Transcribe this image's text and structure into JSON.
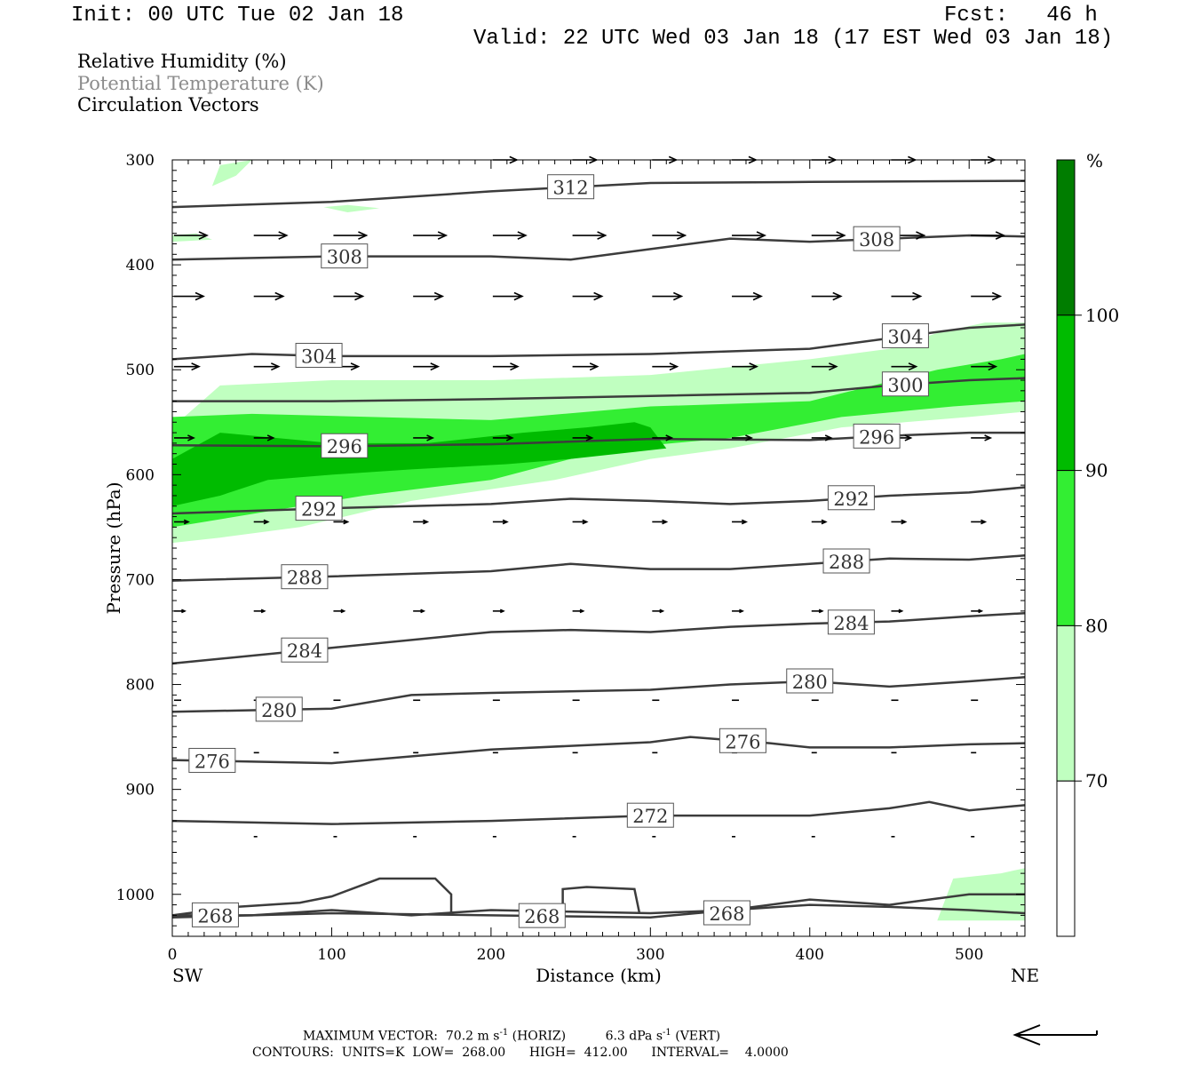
{
  "header": {
    "init": "Init: 00 UTC Tue 02 Jan 18",
    "fcst": "Fcst:   46 h",
    "valid": "Valid: 22 UTC Wed 03 Jan 18 (17 EST Wed 03 Jan 18)"
  },
  "legend": {
    "rh": "Relative Humidity (%)",
    "theta": "Potential Temperature (K)",
    "vectors": "Circulation Vectors",
    "rh_color": "#000000",
    "theta_color": "#8c8c8c"
  },
  "footer": {
    "max_vector_label": "MAXIMUM VECTOR:",
    "horiz_value": "70.2 m s",
    "horiz_unit": "(HORIZ)",
    "vert_value": "6.3 dPa s",
    "vert_unit": "(VERT)",
    "exp": "-1",
    "contours": "CONTOURS:  UNITS=K  LOW=  268.00      HIGH=  412.00      INTERVAL=    4.0000"
  },
  "chart_data": {
    "type": "contour",
    "xlabel": "Distance (km)",
    "ylabel": "Pressure (hPa)",
    "x_end_left": "SW",
    "x_end_right": "NE",
    "xlim": [
      0,
      535
    ],
    "ylim": [
      1040,
      300
    ],
    "xticks": [
      0,
      100,
      200,
      300,
      400,
      500
    ],
    "yticks": [
      300,
      400,
      500,
      600,
      700,
      800,
      900,
      1000
    ],
    "colorbar": {
      "unit": "%",
      "levels": [
        70,
        80,
        90,
        100
      ],
      "colors": [
        "#ffffff",
        "#c0ffc0",
        "#33ee33",
        "#00bb00",
        "#007d00"
      ]
    },
    "rh_shading": [
      {
        "rh": 70,
        "color": "#c0ffc0",
        "points": [
          [
            0,
            565
          ],
          [
            0,
            555
          ],
          [
            30,
            515
          ],
          [
            100,
            510
          ],
          [
            200,
            510
          ],
          [
            300,
            505
          ],
          [
            400,
            490
          ],
          [
            450,
            480
          ],
          [
            480,
            465
          ],
          [
            510,
            455
          ],
          [
            535,
            455
          ],
          [
            535,
            540
          ],
          [
            500,
            545
          ],
          [
            420,
            555
          ],
          [
            350,
            575
          ],
          [
            300,
            585
          ],
          [
            240,
            605
          ],
          [
            150,
            625
          ],
          [
            80,
            650
          ],
          [
            30,
            660
          ],
          [
            0,
            665
          ]
        ]
      },
      {
        "rh": 70,
        "color": "#c0ffc0",
        "points": [
          [
            480,
            1025
          ],
          [
            490,
            985
          ],
          [
            520,
            980
          ],
          [
            535,
            975
          ],
          [
            535,
            1025
          ]
        ]
      },
      {
        "rh": 70,
        "color": "#c0ffc0",
        "points": [
          [
            25,
            325
          ],
          [
            30,
            305
          ],
          [
            50,
            300
          ],
          [
            40,
            315
          ]
        ]
      },
      {
        "rh": 70,
        "color": "#c0ffc0",
        "points": [
          [
            95,
            345
          ],
          [
            110,
            343
          ],
          [
            130,
            346
          ],
          [
            110,
            350
          ]
        ]
      },
      {
        "rh": 70,
        "color": "#c0ffc0",
        "points": [
          [
            0,
            372
          ],
          [
            15,
            370
          ],
          [
            25,
            376
          ],
          [
            0,
            378
          ]
        ]
      },
      {
        "rh": 80,
        "color": "#33ee33",
        "points": [
          [
            0,
            650
          ],
          [
            0,
            545
          ],
          [
            50,
            542
          ],
          [
            200,
            548
          ],
          [
            300,
            535
          ],
          [
            400,
            530
          ],
          [
            480,
            500
          ],
          [
            520,
            490
          ],
          [
            535,
            485
          ],
          [
            535,
            530
          ],
          [
            490,
            535
          ],
          [
            420,
            545
          ],
          [
            350,
            565
          ],
          [
            300,
            572
          ],
          [
            250,
            585
          ],
          [
            200,
            605
          ],
          [
            120,
            620
          ],
          [
            60,
            635
          ],
          [
            20,
            645
          ]
        ]
      },
      {
        "rh": 90,
        "color": "#00bb00",
        "points": [
          [
            0,
            630
          ],
          [
            0,
            585
          ],
          [
            30,
            560
          ],
          [
            100,
            570
          ],
          [
            160,
            570
          ],
          [
            220,
            560
          ],
          [
            260,
            555
          ],
          [
            290,
            550
          ],
          [
            300,
            555
          ],
          [
            310,
            575
          ],
          [
            280,
            580
          ],
          [
            250,
            585
          ],
          [
            210,
            590
          ],
          [
            150,
            595
          ],
          [
            100,
            600
          ],
          [
            60,
            605
          ],
          [
            30,
            620
          ]
        ]
      }
    ],
    "theta_contours": [
      {
        "value": 312,
        "label_x": 250,
        "points": [
          [
            0,
            345
          ],
          [
            100,
            340
          ],
          [
            200,
            330
          ],
          [
            300,
            322
          ],
          [
            400,
            321
          ],
          [
            535,
            320
          ]
        ]
      },
      {
        "value": 308,
        "label_x": 108,
        "points": [
          [
            0,
            395
          ],
          [
            100,
            392
          ],
          [
            200,
            392
          ],
          [
            250,
            395
          ],
          [
            300,
            385
          ],
          [
            350,
            375
          ],
          [
            400,
            378
          ],
          [
            450,
            375
          ],
          [
            500,
            372
          ],
          [
            535,
            373
          ]
        ]
      },
      {
        "value": 308,
        "label_x": 442,
        "points": []
      },
      {
        "value": 304,
        "label_x": 92,
        "points": [
          [
            0,
            490
          ],
          [
            50,
            485
          ],
          [
            100,
            487
          ],
          [
            200,
            487
          ],
          [
            300,
            485
          ],
          [
            400,
            480
          ],
          [
            450,
            470
          ],
          [
            500,
            460
          ],
          [
            535,
            457
          ]
        ]
      },
      {
        "value": 304,
        "label_x": 460,
        "points": []
      },
      {
        "value": 300,
        "label_x": 460,
        "points": [
          [
            0,
            530
          ],
          [
            100,
            530
          ],
          [
            200,
            528
          ],
          [
            300,
            525
          ],
          [
            400,
            522
          ],
          [
            450,
            515
          ],
          [
            500,
            510
          ],
          [
            535,
            508
          ]
        ]
      },
      {
        "value": 296,
        "label_x": 108,
        "points": [
          [
            0,
            572
          ],
          [
            100,
            573
          ],
          [
            200,
            571
          ],
          [
            300,
            566
          ],
          [
            400,
            567
          ],
          [
            450,
            563
          ],
          [
            500,
            560
          ],
          [
            535,
            560
          ]
        ]
      },
      {
        "value": 296,
        "label_x": 442,
        "points": []
      },
      {
        "value": 292,
        "label_x": 92,
        "points": [
          [
            0,
            637
          ],
          [
            100,
            632
          ],
          [
            200,
            628
          ],
          [
            250,
            623
          ],
          [
            300,
            625
          ],
          [
            350,
            628
          ],
          [
            400,
            625
          ],
          [
            450,
            620
          ],
          [
            500,
            617
          ],
          [
            535,
            612
          ]
        ]
      },
      {
        "value": 292,
        "label_x": 426,
        "points": []
      },
      {
        "value": 288,
        "label_x": 83,
        "points": [
          [
            0,
            701
          ],
          [
            100,
            697
          ],
          [
            200,
            692
          ],
          [
            250,
            685
          ],
          [
            300,
            690
          ],
          [
            350,
            690
          ],
          [
            400,
            685
          ],
          [
            450,
            680
          ],
          [
            500,
            681
          ],
          [
            535,
            677
          ]
        ]
      },
      {
        "value": 288,
        "label_x": 423,
        "points": []
      },
      {
        "value": 284,
        "label_x": 83,
        "points": [
          [
            0,
            780
          ],
          [
            100,
            765
          ],
          [
            200,
            750
          ],
          [
            250,
            748
          ],
          [
            300,
            750
          ],
          [
            350,
            745
          ],
          [
            400,
            742
          ],
          [
            450,
            740
          ],
          [
            500,
            735
          ],
          [
            535,
            732
          ]
        ]
      },
      {
        "value": 284,
        "label_x": 426,
        "points": []
      },
      {
        "value": 280,
        "label_x": 67,
        "points": [
          [
            0,
            826
          ],
          [
            100,
            823
          ],
          [
            150,
            810
          ],
          [
            200,
            808
          ],
          [
            300,
            805
          ],
          [
            350,
            800
          ],
          [
            400,
            797
          ],
          [
            450,
            802
          ],
          [
            500,
            797
          ],
          [
            535,
            793
          ]
        ]
      },
      {
        "value": 280,
        "label_x": 400,
        "points": []
      },
      {
        "value": 276,
        "label_x": 25,
        "points": [
          [
            0,
            872
          ],
          [
            100,
            875
          ],
          [
            200,
            862
          ],
          [
            300,
            855
          ],
          [
            325,
            850
          ],
          [
            375,
            856
          ],
          [
            400,
            860
          ],
          [
            450,
            860
          ],
          [
            500,
            857
          ],
          [
            535,
            856
          ]
        ]
      },
      {
        "value": 276,
        "label_x": 358,
        "points": []
      },
      {
        "value": 272,
        "label_x": 300,
        "points": [
          [
            0,
            930
          ],
          [
            100,
            933
          ],
          [
            200,
            930
          ],
          [
            300,
            925
          ],
          [
            400,
            925
          ],
          [
            450,
            918
          ],
          [
            475,
            912
          ],
          [
            500,
            920
          ],
          [
            535,
            915
          ]
        ]
      },
      {
        "value": 268,
        "label_x": 27,
        "points": [
          [
            0,
            1020
          ],
          [
            50,
            1020
          ],
          [
            100,
            1015
          ],
          [
            150,
            1020
          ],
          [
            200,
            1015
          ],
          [
            300,
            1018
          ],
          [
            350,
            1015
          ],
          [
            400,
            1005
          ],
          [
            450,
            1010
          ],
          [
            500,
            1000
          ],
          [
            535,
            1000
          ]
        ]
      },
      {
        "value": 268,
        "label_x": 232,
        "points": [
          [
            0,
            1022
          ],
          [
            100,
            1018
          ],
          [
            200,
            1020
          ],
          [
            300,
            1022
          ],
          [
            350,
            1015
          ],
          [
            400,
            1010
          ],
          [
            450,
            1012
          ],
          [
            500,
            1015
          ],
          [
            535,
            1018
          ]
        ]
      },
      {
        "value": 268,
        "label_x": 348,
        "points": [
          [
            0,
            1020
          ],
          [
            40,
            1012
          ],
          [
            80,
            1008
          ],
          [
            100,
            1002
          ],
          [
            130,
            985
          ],
          [
            165,
            985
          ],
          [
            175,
            1000
          ],
          [
            175,
            1018
          ]
        ]
      },
      {
        "value": 0,
        "label_x": -1,
        "points": [
          [
            245,
            1017
          ],
          [
            245,
            995
          ],
          [
            260,
            993
          ],
          [
            290,
            995
          ],
          [
            293,
            1017
          ]
        ]
      }
    ],
    "vector_rows": [
      {
        "p": 300,
        "x": [
          200,
          250,
          300,
          350,
          400,
          450,
          500
        ],
        "len": 27
      },
      {
        "p": 372,
        "x": [
          0,
          50,
          100,
          150,
          200,
          250,
          300,
          350,
          400,
          450,
          500
        ],
        "len": 37
      },
      {
        "p": 430,
        "x": [
          0,
          50,
          100,
          150,
          200,
          250,
          300,
          350,
          400,
          450,
          500
        ],
        "len": 33
      },
      {
        "p": 497,
        "x": [
          0,
          50,
          100,
          150,
          200,
          250,
          300,
          350,
          400,
          450,
          500
        ],
        "len": 28
      },
      {
        "p": 565,
        "x": [
          0,
          50,
          100,
          150,
          200,
          250,
          300,
          350,
          400,
          450,
          500
        ],
        "len": 22
      },
      {
        "p": 645,
        "x": [
          0,
          50,
          100,
          150,
          200,
          250,
          300,
          350,
          400,
          450,
          500
        ],
        "len": 16
      },
      {
        "p": 730,
        "x": [
          0,
          50,
          100,
          150,
          200,
          250,
          300,
          350,
          400,
          450,
          500
        ],
        "len": 12
      },
      {
        "p": 815,
        "x": [
          0,
          50,
          100,
          150,
          200,
          250,
          300,
          350,
          400,
          450,
          500
        ],
        "len": 8
      },
      {
        "p": 865,
        "x": [
          50,
          100,
          150,
          200,
          250,
          300,
          350,
          400,
          450,
          500
        ],
        "len": 6
      },
      {
        "p": 945,
        "x": [
          50,
          100,
          150,
          200,
          250,
          300,
          350,
          400,
          450,
          500
        ],
        "len": 4
      }
    ]
  }
}
